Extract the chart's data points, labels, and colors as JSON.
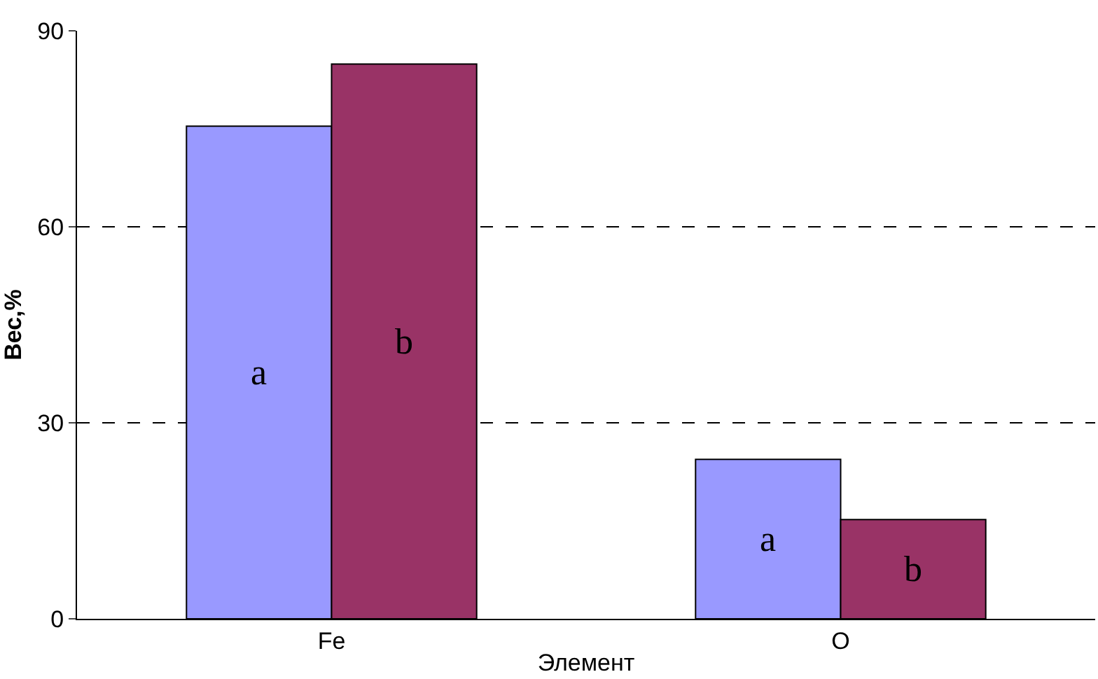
{
  "chart_data": {
    "type": "bar",
    "xlabel": "Элемент",
    "ylabel": "Вес,%",
    "categories": [
      "Fe",
      "O"
    ],
    "series": [
      {
        "name": "a",
        "color": "#9999ff",
        "values": [
          75.4,
          24.4
        ]
      },
      {
        "name": "b",
        "color": "#993366",
        "values": [
          84.9,
          15.2
        ]
      }
    ],
    "ylim": [
      0,
      90
    ],
    "yticks": [
      0,
      30,
      60,
      90
    ],
    "grid": "y",
    "legend": false
  }
}
